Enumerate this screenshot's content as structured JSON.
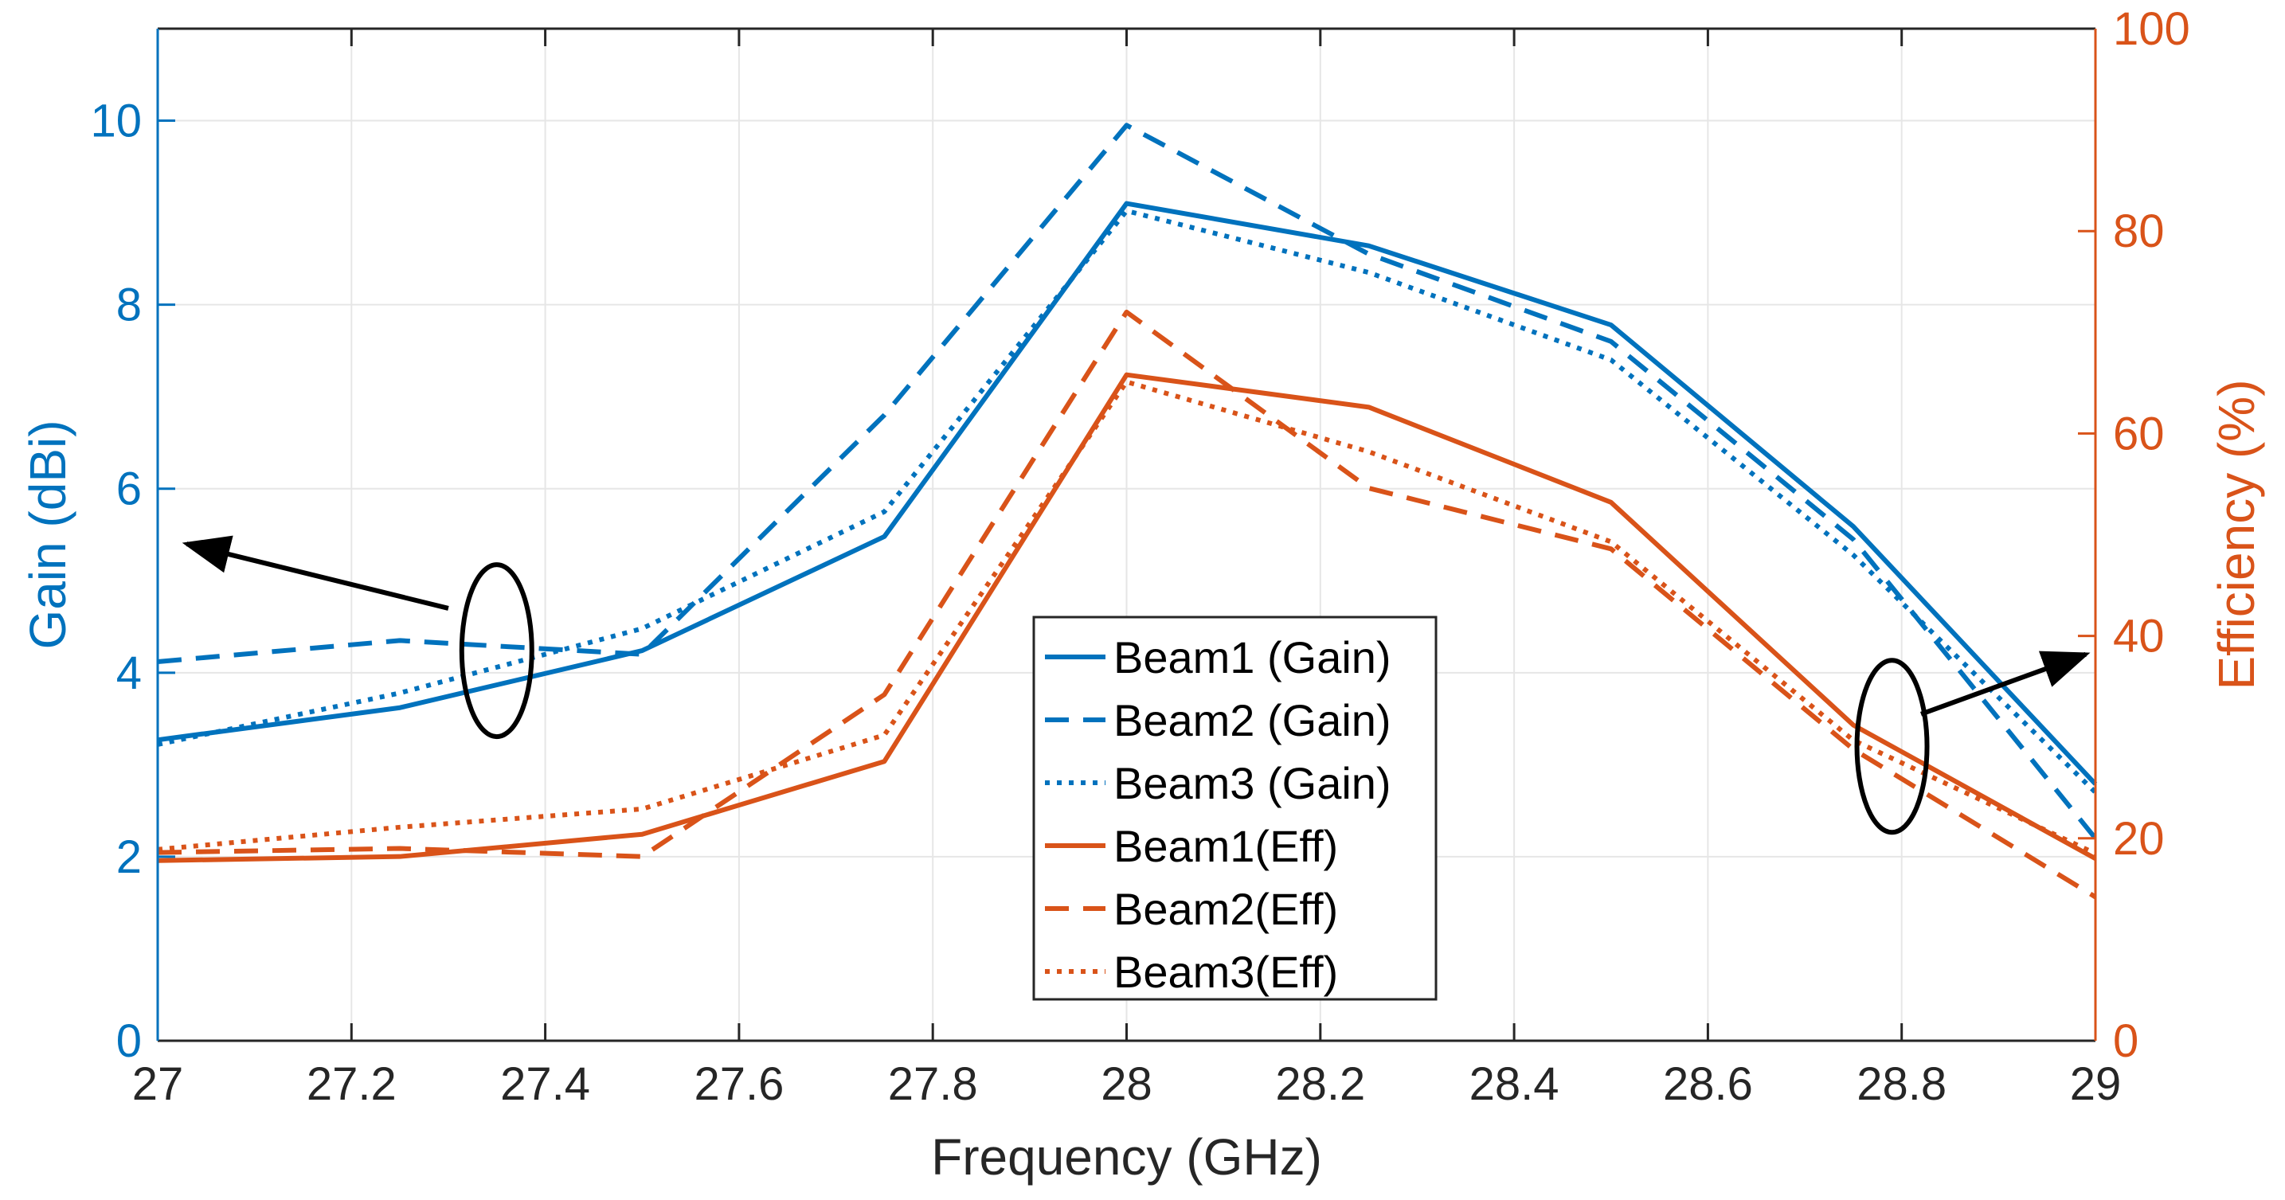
{
  "chart_data": {
    "type": "line",
    "xlabel": "Frequency (GHz)",
    "ylabel": "Gain (dBi)",
    "y2label": "Efficiency (%)",
    "xlim": [
      27,
      29
    ],
    "ylim": [
      0,
      11
    ],
    "y2lim": [
      0,
      100
    ],
    "grid": true,
    "x": [
      27,
      27.25,
      27.5,
      27.75,
      28,
      28.25,
      28.5,
      28.75,
      29
    ],
    "xticks": [
      "27",
      "27.2",
      "27.4",
      "27.6",
      "27.8",
      "28",
      "28.2",
      "28.4",
      "28.6",
      "28.8",
      "29"
    ],
    "yticks": [
      "0",
      "2",
      "4",
      "6",
      "8",
      "10"
    ],
    "y2ticks": [
      "0",
      "20",
      "40",
      "60",
      "80",
      "100"
    ],
    "legend_position": "center",
    "colors": {
      "gain": "#0072BD",
      "eff": "#D95319",
      "annotation": "#000000",
      "grid": "#e6e6e6"
    },
    "series": [
      {
        "name": "Beam1 (Gain)",
        "axis": "left",
        "color": "#0072BD",
        "dash": "solid",
        "values": [
          3.27,
          3.62,
          4.24,
          5.48,
          9.1,
          8.64,
          7.78,
          5.59,
          2.79
        ]
      },
      {
        "name": "Beam2 (Gain)",
        "axis": "left",
        "color": "#0072BD",
        "dash": "dashed",
        "values": [
          4.12,
          4.35,
          4.2,
          6.8,
          9.95,
          8.55,
          7.6,
          5.45,
          2.2
        ]
      },
      {
        "name": "Beam3 (Gain)",
        "axis": "left",
        "color": "#0072BD",
        "dash": "dotted",
        "values": [
          3.22,
          3.78,
          4.48,
          5.75,
          9.02,
          8.35,
          7.4,
          5.28,
          2.7
        ]
      },
      {
        "name": "Beam1(Eff)",
        "axis": "right",
        "color": "#D95319",
        "dash": "solid",
        "values": [
          17.8,
          18.2,
          20.4,
          27.6,
          65.8,
          62.6,
          53.2,
          31.2,
          18
        ]
      },
      {
        "name": "Beam2(Eff)",
        "axis": "right",
        "color": "#D95319",
        "dash": "dashed",
        "values": [
          18.6,
          19,
          18.2,
          34.2,
          72,
          54.6,
          48.6,
          28.8,
          14.2
        ]
      },
      {
        "name": "Beam3(Eff)",
        "axis": "right",
        "color": "#D95319",
        "dash": "dotted",
        "values": [
          18.9,
          21.1,
          22.9,
          30.2,
          65.1,
          58.2,
          49.3,
          29.7,
          18.5
        ]
      }
    ],
    "annotations": [
      {
        "name": "gain-group",
        "ellipse_center": [
          27.35,
          4.24
        ],
        "arrow_from": [
          27.3,
          4.7
        ],
        "arrow_to": [
          27.03,
          5.4
        ]
      },
      {
        "name": "efficiency-group",
        "ellipse_center": [
          28.79,
          3.2
        ],
        "arrow_from": [
          28.82,
          3.55
        ],
        "arrow_to": [
          28.99,
          4.2
        ]
      }
    ]
  }
}
